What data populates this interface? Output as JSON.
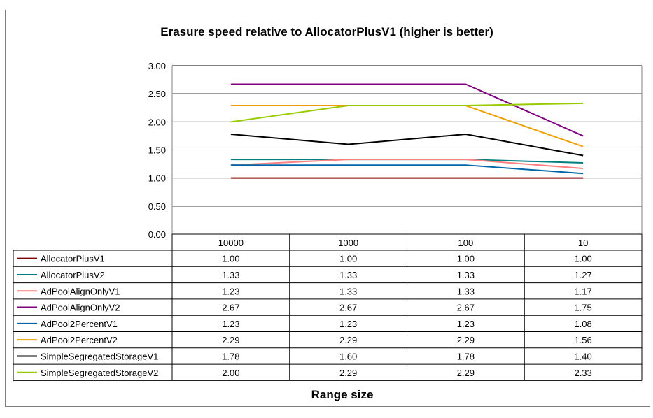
{
  "chart_data": {
    "type": "line",
    "title": "Erasure speed relative to AllocatorPlusV1 (higher is better)",
    "xlabel": "Range size",
    "ylabel": "",
    "categories": [
      "10000",
      "1000",
      "100",
      "10"
    ],
    "ylim": [
      0,
      3
    ],
    "yticks": [
      "0.00",
      "0.50",
      "1.00",
      "1.50",
      "2.00",
      "2.50",
      "3.00"
    ],
    "ytick_values": [
      0,
      0.5,
      1,
      1.5,
      2,
      2.5,
      3
    ],
    "grid": true,
    "legend": "data-table",
    "series": [
      {
        "name": "AllocatorPlusV1",
        "color": "#800000",
        "values": [
          1.0,
          1.0,
          1.0,
          1.0
        ],
        "labels": [
          "1.00",
          "1.00",
          "1.00",
          "1.00"
        ]
      },
      {
        "name": "AllocatorPlusV2",
        "color": "#008080",
        "values": [
          1.33,
          1.33,
          1.33,
          1.27
        ],
        "labels": [
          "1.33",
          "1.33",
          "1.33",
          "1.27"
        ]
      },
      {
        "name": "AdPoolAlignOnlyV1",
        "color": "#FF8080",
        "values": [
          1.23,
          1.33,
          1.33,
          1.17
        ],
        "labels": [
          "1.23",
          "1.33",
          "1.33",
          "1.17"
        ]
      },
      {
        "name": "AdPoolAlignOnlyV2",
        "color": "#800080",
        "values": [
          2.67,
          2.67,
          2.67,
          1.75
        ],
        "labels": [
          "2.67",
          "2.67",
          "2.67",
          "1.75"
        ]
      },
      {
        "name": "AdPool2PercentV1",
        "color": "#0066AA",
        "values": [
          1.23,
          1.23,
          1.23,
          1.08
        ],
        "labels": [
          "1.23",
          "1.23",
          "1.23",
          "1.08"
        ]
      },
      {
        "name": "AdPool2PercentV2",
        "color": "#F0A000",
        "values": [
          2.29,
          2.29,
          2.29,
          1.56
        ],
        "labels": [
          "2.29",
          "2.29",
          "2.29",
          "1.56"
        ]
      },
      {
        "name": "SimpleSegregatedStorageV1",
        "color": "#000000",
        "values": [
          1.78,
          1.6,
          1.78,
          1.4
        ],
        "labels": [
          "1.78",
          "1.60",
          "1.78",
          "1.40"
        ]
      },
      {
        "name": "SimpleSegregatedStorageV2",
        "color": "#99CC00",
        "values": [
          2.0,
          2.29,
          2.29,
          2.33
        ],
        "labels": [
          "2.00",
          "2.29",
          "2.29",
          "2.33"
        ]
      }
    ]
  }
}
